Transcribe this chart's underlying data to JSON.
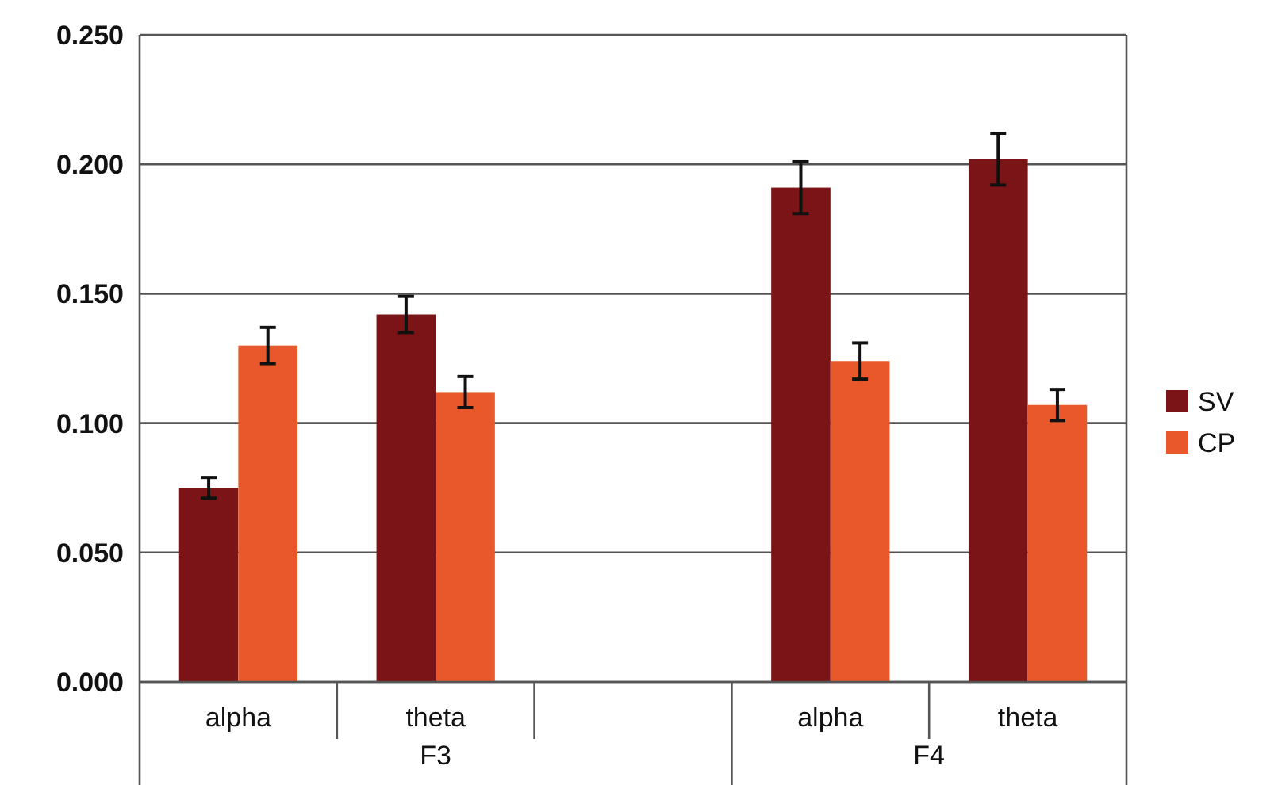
{
  "chart_data": {
    "type": "bar",
    "categories": [
      "alpha",
      "theta",
      null,
      "alpha",
      "theta"
    ],
    "series": [
      {
        "name": "SV",
        "color": "#7a1416",
        "values": [
          0.075,
          0.142,
          null,
          0.191,
          0.202
        ],
        "errors": [
          0.004,
          0.007,
          null,
          0.01,
          0.01
        ]
      },
      {
        "name": "CP",
        "color": "#e8582a",
        "values": [
          0.13,
          0.112,
          null,
          0.124,
          0.107
        ],
        "errors": [
          0.007,
          0.006,
          null,
          0.007,
          0.006
        ]
      }
    ],
    "annotations": [
      "F3",
      "F4"
    ],
    "ylim": [
      0,
      0.25
    ],
    "yticks": [
      {
        "value": 0,
        "label": "0.000"
      },
      {
        "value": 0.05,
        "label": "0.050"
      },
      {
        "value": 0.1,
        "label": "0.100"
      },
      {
        "value": 0.15,
        "label": "0.150"
      },
      {
        "value": 0.2,
        "label": "0.200"
      },
      {
        "value": 0.25,
        "label": "0.250"
      }
    ],
    "grid": "y",
    "legend": "right"
  }
}
